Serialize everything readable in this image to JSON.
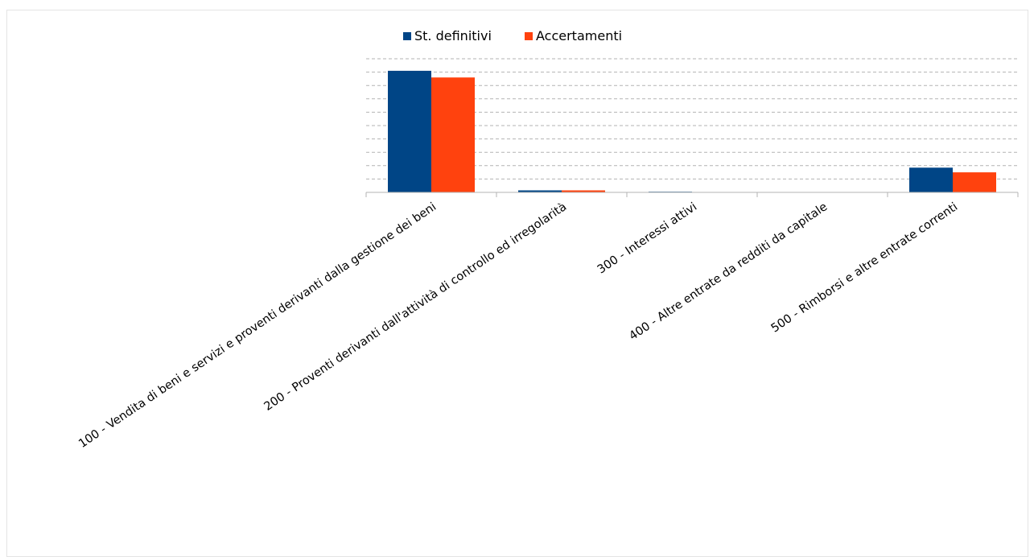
{
  "chart_data": {
    "type": "bar",
    "title": "",
    "xlabel": "",
    "ylabel": "",
    "categories": [
      "100 - Vendita di beni e servizi e proventi derivanti dalla gestione dei beni",
      "200 - Proventi derivanti dall'attività di controllo ed irregolarità",
      "300 - Interessi attivi",
      "400 - Altre entrate da redditi da capitale",
      "500 - Rimborsi e altre entrate correnti"
    ],
    "series": [
      {
        "name": "St. definitivi",
        "values": [
          9.1,
          0.15,
          0.05,
          0.0,
          1.85
        ],
        "color": "#004586"
      },
      {
        "name": "Accertamenti",
        "values": [
          8.6,
          0.15,
          0.02,
          0.0,
          1.5
        ],
        "color": "#ff420e"
      }
    ],
    "ylim": [
      0,
      10
    ],
    "y_gridlines": 10,
    "grid": true,
    "y_tick_labels_visible": false,
    "legend_position": "top-center"
  }
}
